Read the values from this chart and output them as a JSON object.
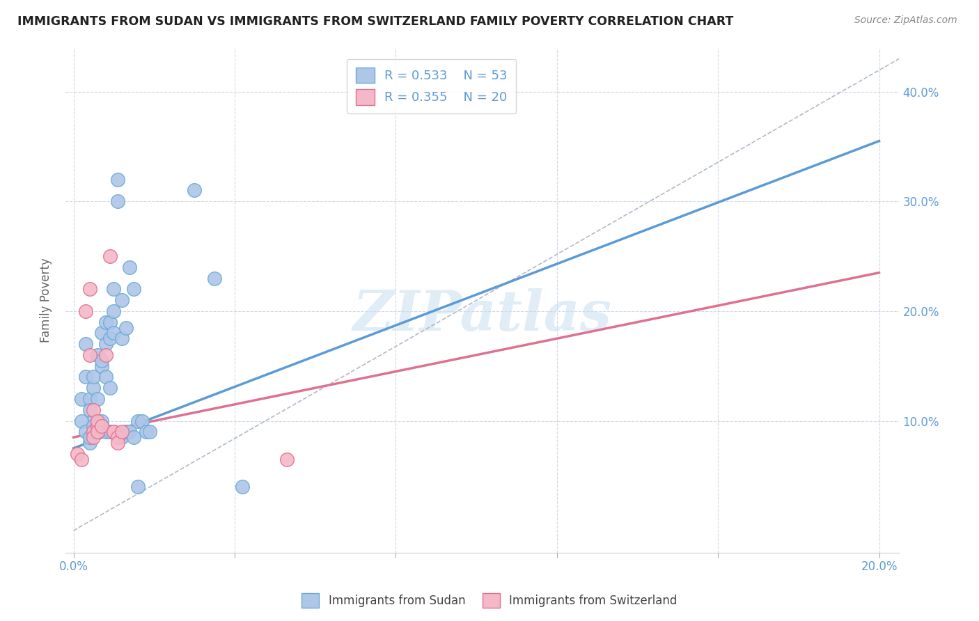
{
  "title": "IMMIGRANTS FROM SUDAN VS IMMIGRANTS FROM SWITZERLAND FAMILY POVERTY CORRELATION CHART",
  "source": "Source: ZipAtlas.com",
  "ylabel": "Family Poverty",
  "ytick_labels": [
    "10.0%",
    "20.0%",
    "30.0%",
    "40.0%"
  ],
  "ytick_values": [
    0.1,
    0.2,
    0.3,
    0.4
  ],
  "xtick_positions": [
    0.0,
    0.04,
    0.08,
    0.12,
    0.16,
    0.2
  ],
  "xtick_labels": [
    "0.0%",
    "",
    "",
    "",
    "",
    "20.0%"
  ],
  "xlim": [
    -0.002,
    0.205
  ],
  "ylim": [
    -0.02,
    0.44
  ],
  "sudan_color": "#aec6e8",
  "sudan_edge_color": "#6aaad4",
  "switzerland_color": "#f4b8c8",
  "switzerland_edge_color": "#e07090",
  "sudan_R": 0.533,
  "sudan_N": 53,
  "switzerland_R": 0.355,
  "switzerland_N": 20,
  "sudan_line_color": "#5b9bd5",
  "switzerland_line_color": "#e07090",
  "dashed_line_color": "#b0b8c8",
  "watermark": "ZIPatlas",
  "legend_label_sudan": "Immigrants from Sudan",
  "legend_label_switzerland": "Immigrants from Switzerland",
  "sudan_x": [
    0.002,
    0.003,
    0.003,
    0.004,
    0.004,
    0.005,
    0.005,
    0.005,
    0.006,
    0.006,
    0.007,
    0.007,
    0.007,
    0.008,
    0.008,
    0.008,
    0.009,
    0.009,
    0.009,
    0.01,
    0.01,
    0.01,
    0.011,
    0.011,
    0.012,
    0.012,
    0.013,
    0.014,
    0.015,
    0.016,
    0.017,
    0.018,
    0.019,
    0.002,
    0.003,
    0.004,
    0.004,
    0.005,
    0.006,
    0.006,
    0.007,
    0.007,
    0.008,
    0.009,
    0.01,
    0.012,
    0.013,
    0.014,
    0.015,
    0.016,
    0.03,
    0.035,
    0.042
  ],
  "sudan_y": [
    0.12,
    0.17,
    0.14,
    0.12,
    0.11,
    0.13,
    0.1,
    0.14,
    0.12,
    0.16,
    0.18,
    0.15,
    0.155,
    0.17,
    0.19,
    0.14,
    0.19,
    0.175,
    0.13,
    0.2,
    0.18,
    0.22,
    0.3,
    0.32,
    0.21,
    0.175,
    0.185,
    0.24,
    0.22,
    0.1,
    0.1,
    0.09,
    0.09,
    0.1,
    0.09,
    0.08,
    0.085,
    0.095,
    0.09,
    0.095,
    0.1,
    0.095,
    0.09,
    0.09,
    0.09,
    0.085,
    0.09,
    0.09,
    0.085,
    0.04,
    0.31,
    0.23,
    0.04
  ],
  "switzerland_x": [
    0.001,
    0.002,
    0.003,
    0.004,
    0.004,
    0.005,
    0.005,
    0.005,
    0.006,
    0.006,
    0.006,
    0.007,
    0.008,
    0.009,
    0.01,
    0.01,
    0.011,
    0.011,
    0.012,
    0.053
  ],
  "switzerland_y": [
    0.07,
    0.065,
    0.2,
    0.22,
    0.16,
    0.09,
    0.085,
    0.11,
    0.095,
    0.1,
    0.09,
    0.095,
    0.16,
    0.25,
    0.09,
    0.09,
    0.085,
    0.08,
    0.09,
    0.065
  ],
  "sudan_line_x0": 0.0,
  "sudan_line_x1": 0.2,
  "sudan_line_y0": 0.075,
  "sudan_line_y1": 0.355,
  "switzerland_line_x0": 0.0,
  "switzerland_line_x1": 0.2,
  "switzerland_line_y0": 0.085,
  "switzerland_line_y1": 0.235,
  "dashed_line_x0": 0.0,
  "dashed_line_x1": 0.205,
  "dashed_line_y0": 0.0,
  "dashed_line_y1": 0.43
}
